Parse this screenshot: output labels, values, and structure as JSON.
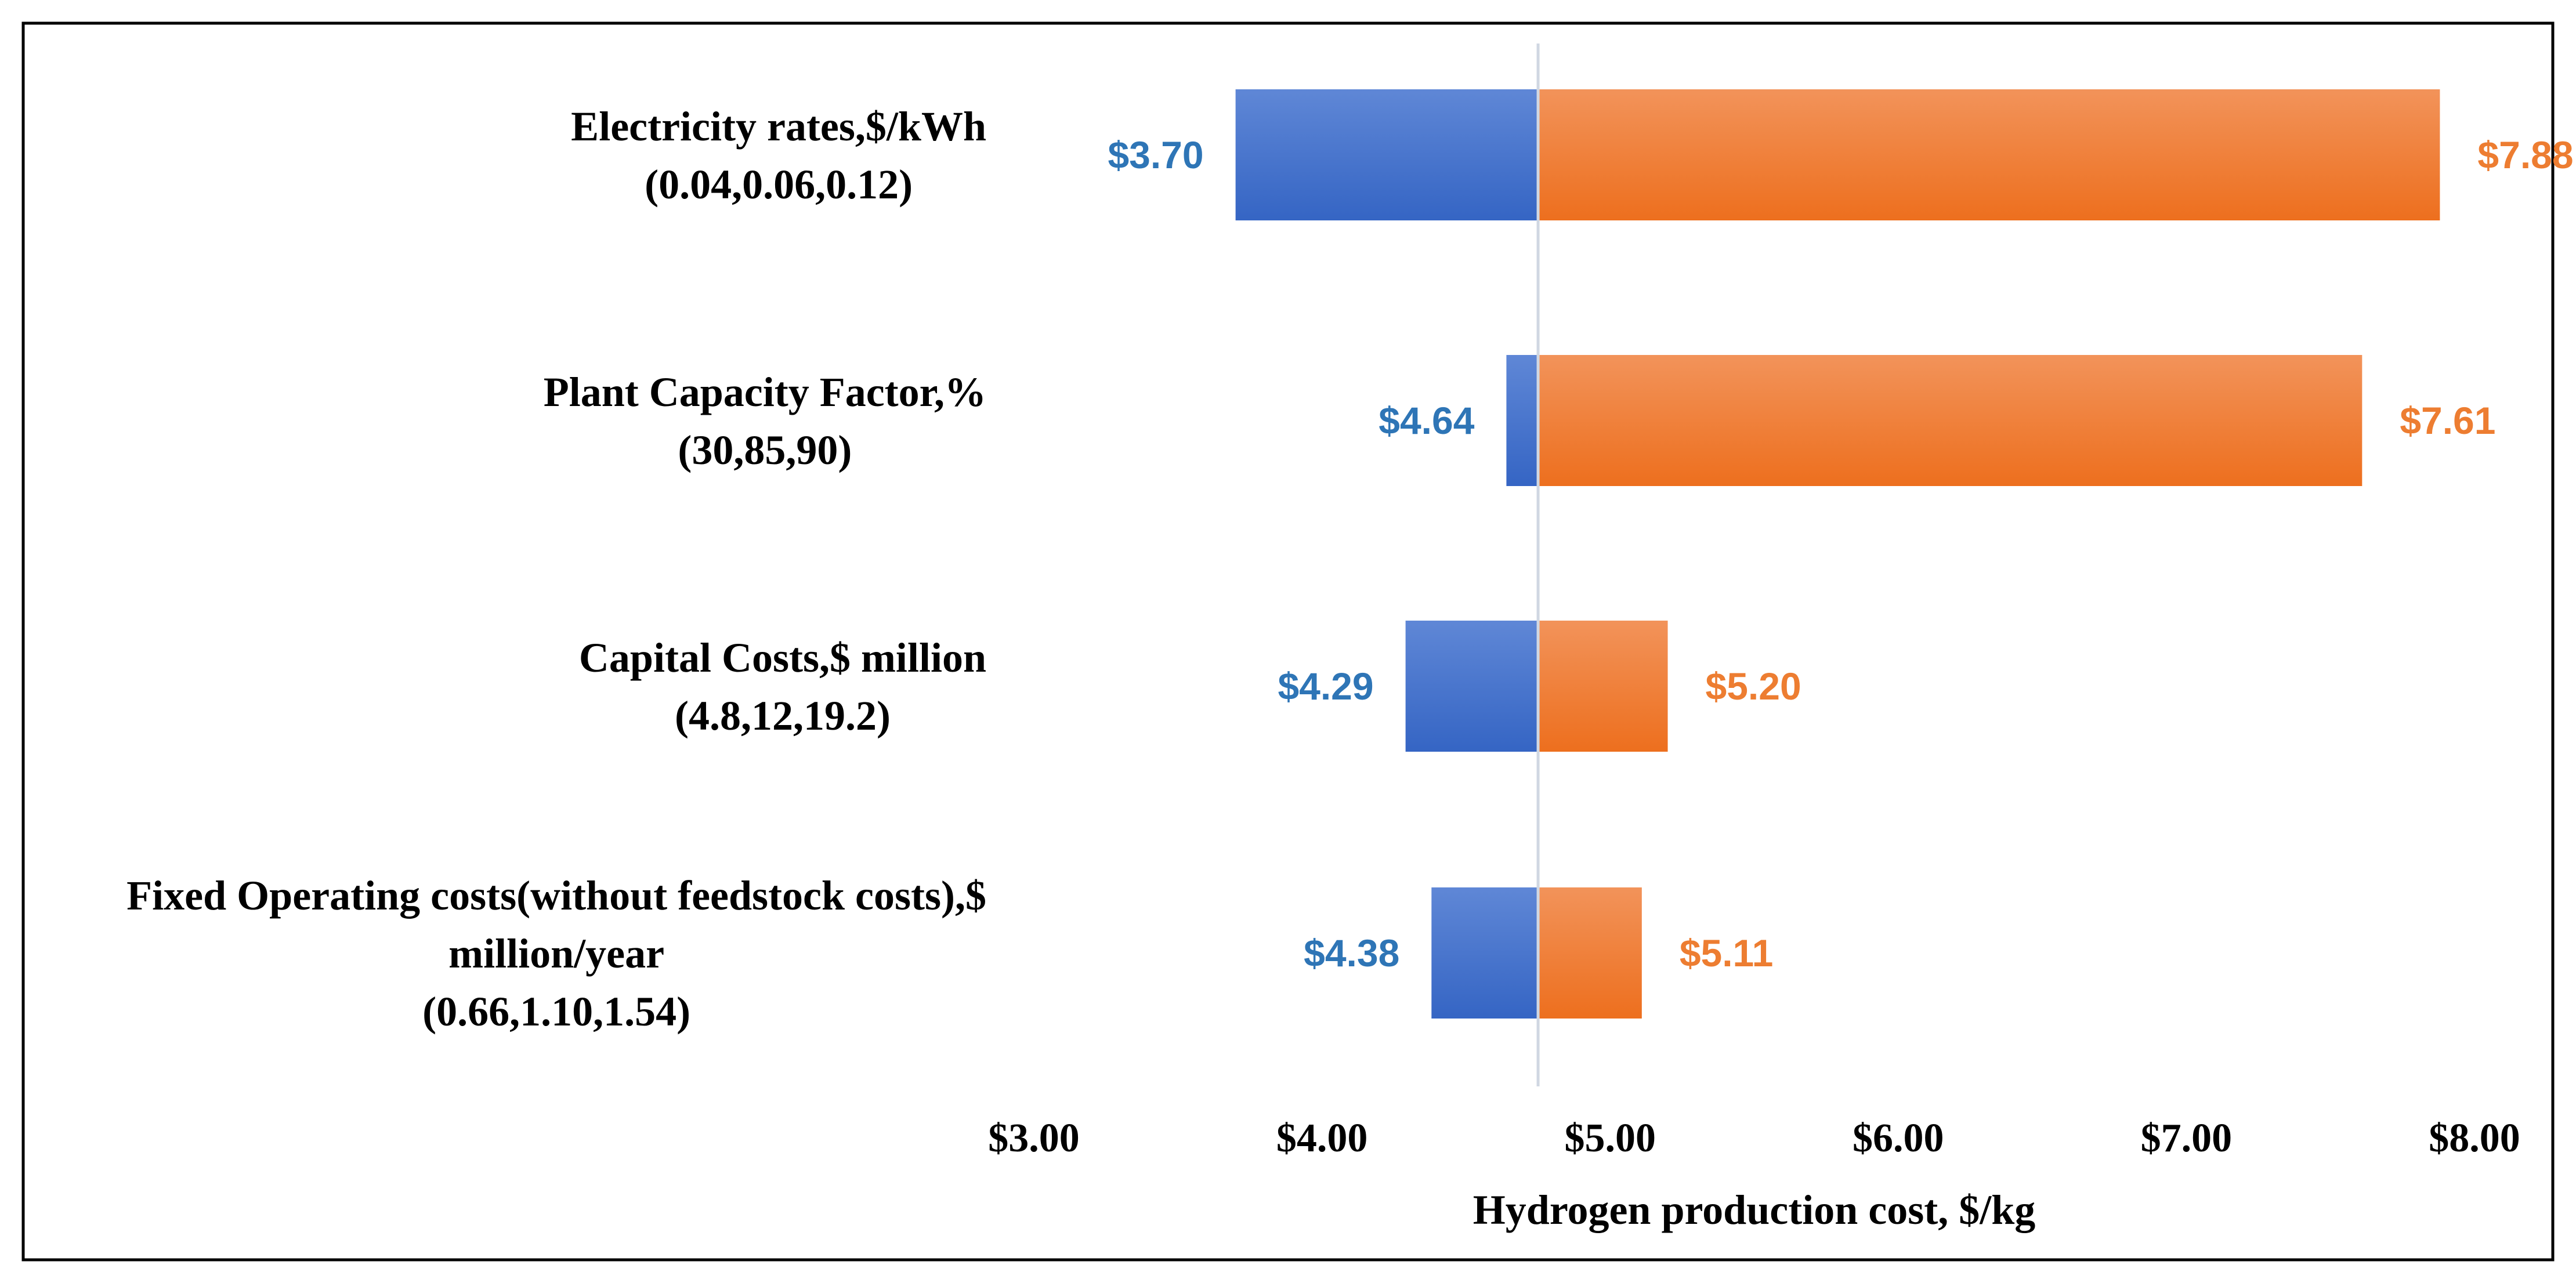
{
  "chart_data": {
    "type": "bar",
    "orientation": "horizontal",
    "subtype": "tornado",
    "baseline": 4.75,
    "categories": [
      {
        "label_lines": [
          "Electricity rates,$/kWh",
          "(0.04,0.06,0.12)"
        ],
        "low": 3.7,
        "high": 7.88,
        "low_label": "$3.70",
        "high_label": "$7.88"
      },
      {
        "label_lines": [
          "Plant Capacity Factor,%",
          "(30,85,90)"
        ],
        "low": 4.64,
        "high": 7.61,
        "low_label": "$4.64",
        "high_label": "$7.61"
      },
      {
        "label_lines": [
          "Capital Costs,$ million",
          "(4.8,12,19.2)"
        ],
        "low": 4.29,
        "high": 5.2,
        "low_label": "$4.29",
        "high_label": "$5.20"
      },
      {
        "label_lines": [
          "Fixed Operating costs(without feedstock costs),$",
          "million/year",
          "(0.66,1.10,1.54)"
        ],
        "low": 4.38,
        "high": 5.11,
        "low_label": "$4.38",
        "high_label": "$5.11"
      }
    ],
    "xlim": [
      3.0,
      8.0
    ],
    "xticks": [
      3,
      4,
      5,
      6,
      7,
      8
    ],
    "xtick_labels": [
      "$3.00",
      "$4.00",
      "$5.00",
      "$6.00",
      "$7.00",
      "$8.00"
    ],
    "xlabel": "Hydrogen production cost,  $/kg",
    "grid": false,
    "colors": {
      "low": "#3565c4",
      "low_light": "#5f87d6",
      "high": "#ed6f1e",
      "high_light": "#f2935a",
      "low_label": "#2e75b6",
      "high_label": "#ed7d31",
      "baseline": "#d0d7e2",
      "frame": "#000000"
    }
  }
}
